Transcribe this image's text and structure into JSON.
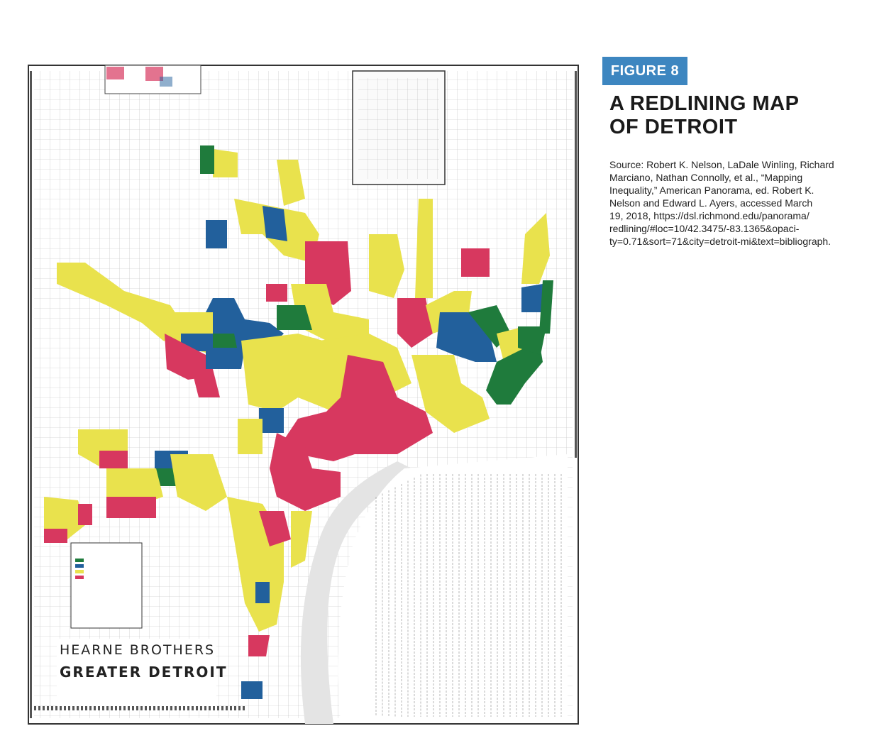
{
  "figure": {
    "label": "FIGURE 8",
    "title_lines": [
      "A REDLINING MAP",
      "OF DETROIT"
    ],
    "source_lines": [
      "Source: Robert K. Nelson, LaDale Winling, Richard",
      "Marciano, Nathan Connolly, et al., “Mapping",
      "Inequality,” American Panorama, ed. Robert K.",
      "Nelson and Edward L. Ayers, accessed March",
      "19, 2018, https://dsl.richmond.edu/panorama/",
      "redlining/#loc=10/42.3475/-83.1365&opaci-",
      "ty=0.71&sort=71&city=detroit-mi&text=bibliograph."
    ]
  },
  "map": {
    "publisher": "HEARNE BROTHERS",
    "name": "GREATER DETROIT"
  }
}
